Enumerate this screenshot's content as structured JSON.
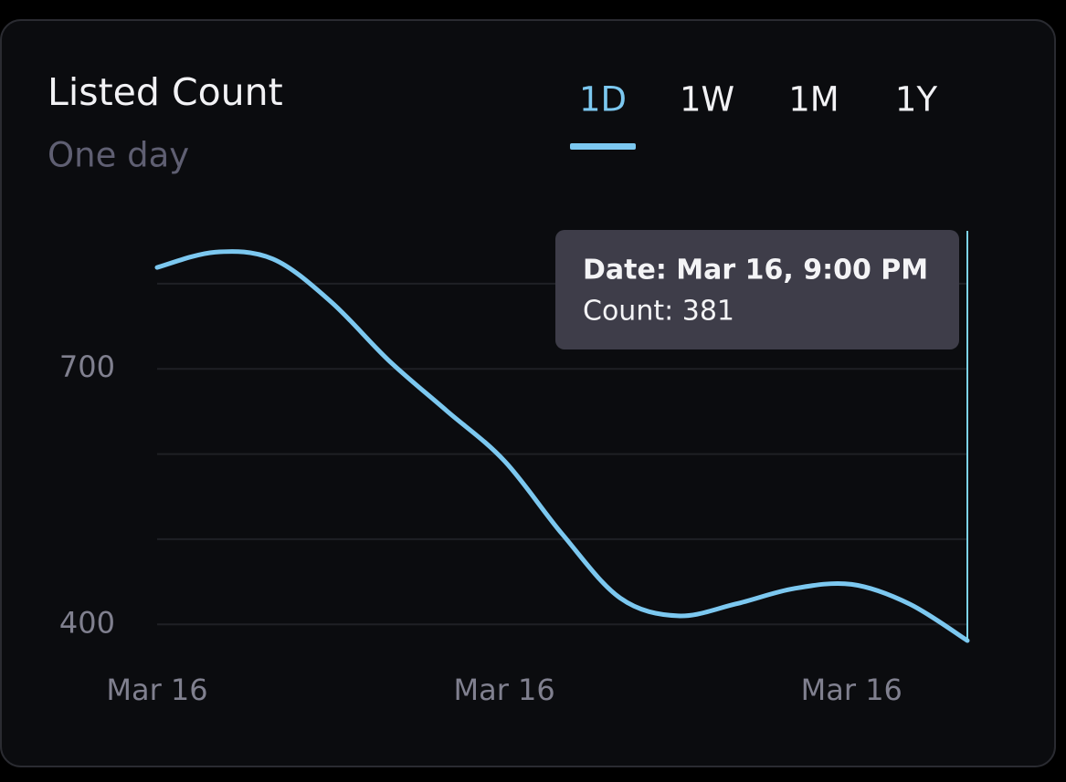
{
  "chart_data": {
    "type": "line",
    "title": "Listed Count",
    "subtitle": "One day",
    "tabs": [
      "1D",
      "1W",
      "1M",
      "1Y"
    ],
    "active_tab": 0,
    "categories": [
      "Mar 16",
      null,
      null,
      null,
      null,
      null,
      "Mar 16",
      null,
      null,
      null,
      null,
      null,
      "Mar 16",
      null,
      null
    ],
    "series": [
      {
        "name": "Count",
        "color": "#7cc8f0",
        "values": [
          819,
          837,
          829,
          779,
          710,
          651,
          592,
          506,
          431,
          410,
          424,
          442,
          447,
          424,
          381
        ]
      }
    ],
    "ylim": [
      381,
      862
    ],
    "yticks": [
      400,
      700
    ],
    "ygrid": [
      400,
      500,
      600,
      700,
      800
    ],
    "grid": true,
    "tooltip": {
      "title": "Date: Mar 16, 9:00 PM",
      "text": "Count: 381",
      "index": 14
    }
  }
}
